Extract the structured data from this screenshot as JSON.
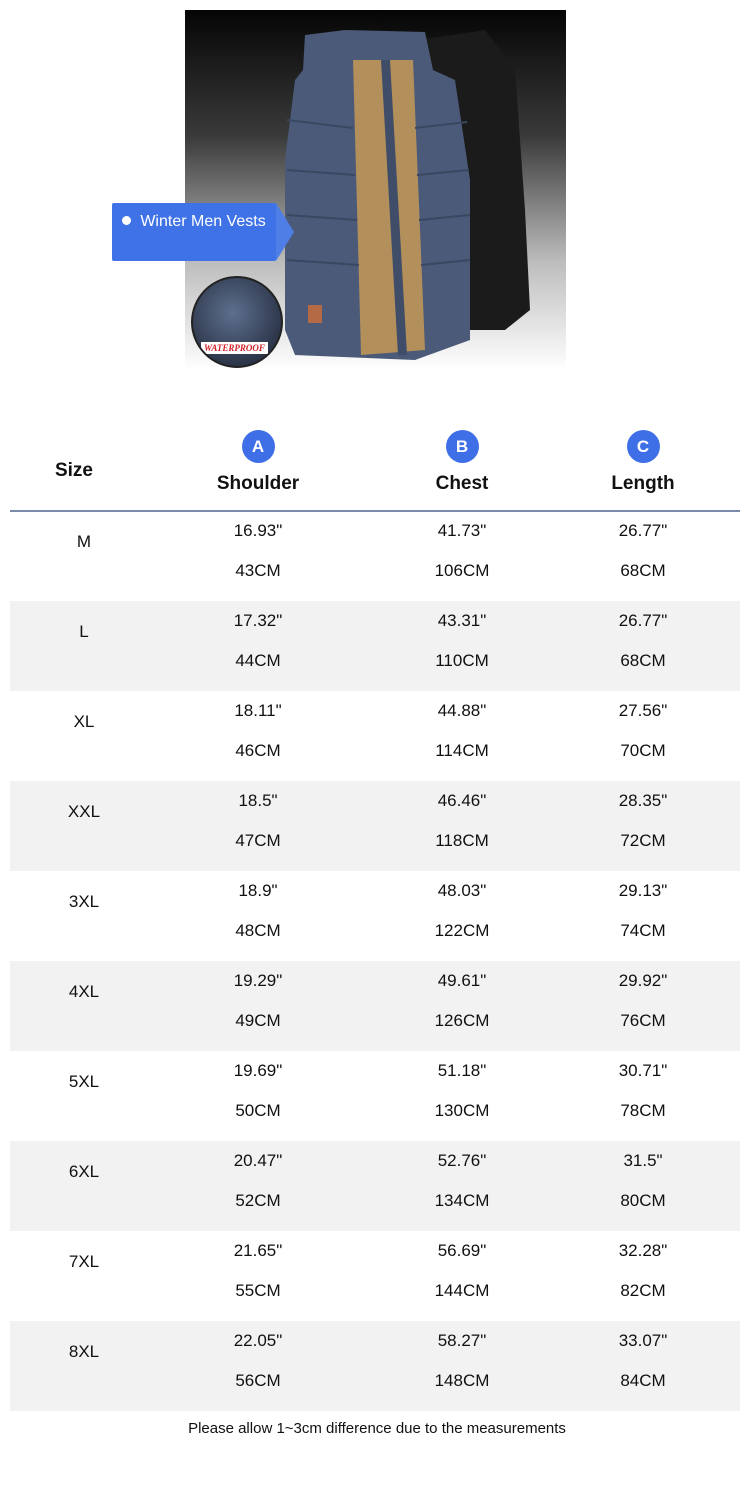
{
  "product": {
    "callout": "Winter Men Vests",
    "badge": "WATERPROOF",
    "colors": {
      "accent": "#3f6fe6",
      "row_alt": "#f2f2f2",
      "divider": "#7a8aa8"
    }
  },
  "table": {
    "size_header": "Size",
    "columns": [
      {
        "letter": "A",
        "label": "Shoulder"
      },
      {
        "letter": "B",
        "label": "Chest"
      },
      {
        "letter": "C",
        "label": "Length"
      }
    ],
    "rows": [
      {
        "size": "M",
        "shoulder_in": "16.93\"",
        "shoulder_cm": "43CM",
        "chest_in": "41.73\"",
        "chest_cm": "106CM",
        "length_in": "26.77\"",
        "length_cm": "68CM"
      },
      {
        "size": "L",
        "shoulder_in": "17.32\"",
        "shoulder_cm": "44CM",
        "chest_in": "43.31\"",
        "chest_cm": "110CM",
        "length_in": "26.77\"",
        "length_cm": "68CM"
      },
      {
        "size": "XL",
        "shoulder_in": "18.11\"",
        "shoulder_cm": "46CM",
        "chest_in": "44.88\"",
        "chest_cm": "114CM",
        "length_in": "27.56\"",
        "length_cm": "70CM"
      },
      {
        "size": "XXL",
        "shoulder_in": "18.5\"",
        "shoulder_cm": "47CM",
        "chest_in": "46.46\"",
        "chest_cm": "118CM",
        "length_in": "28.35\"",
        "length_cm": "72CM"
      },
      {
        "size": "3XL",
        "shoulder_in": "18.9\"",
        "shoulder_cm": "48CM",
        "chest_in": "48.03\"",
        "chest_cm": "122CM",
        "length_in": "29.13\"",
        "length_cm": "74CM"
      },
      {
        "size": "4XL",
        "shoulder_in": "19.29\"",
        "shoulder_cm": "49CM",
        "chest_in": "49.61\"",
        "chest_cm": "126CM",
        "length_in": "29.92\"",
        "length_cm": "76CM"
      },
      {
        "size": "5XL",
        "shoulder_in": "19.69\"",
        "shoulder_cm": "50CM",
        "chest_in": "51.18\"",
        "chest_cm": "130CM",
        "length_in": "30.71\"",
        "length_cm": "78CM"
      },
      {
        "size": "6XL",
        "shoulder_in": "20.47\"",
        "shoulder_cm": "52CM",
        "chest_in": "52.76\"",
        "chest_cm": "134CM",
        "length_in": "31.5\"",
        "length_cm": "80CM"
      },
      {
        "size": "7XL",
        "shoulder_in": "21.65\"",
        "shoulder_cm": "55CM",
        "chest_in": "56.69\"",
        "chest_cm": "144CM",
        "length_in": "32.28\"",
        "length_cm": "82CM"
      },
      {
        "size": "8XL",
        "shoulder_in": "22.05\"",
        "shoulder_cm": "56CM",
        "chest_in": "58.27\"",
        "chest_cm": "148CM",
        "length_in": "33.07\"",
        "length_cm": "84CM"
      }
    ]
  },
  "note": "Please allow 1~3cm difference due to the measurements"
}
